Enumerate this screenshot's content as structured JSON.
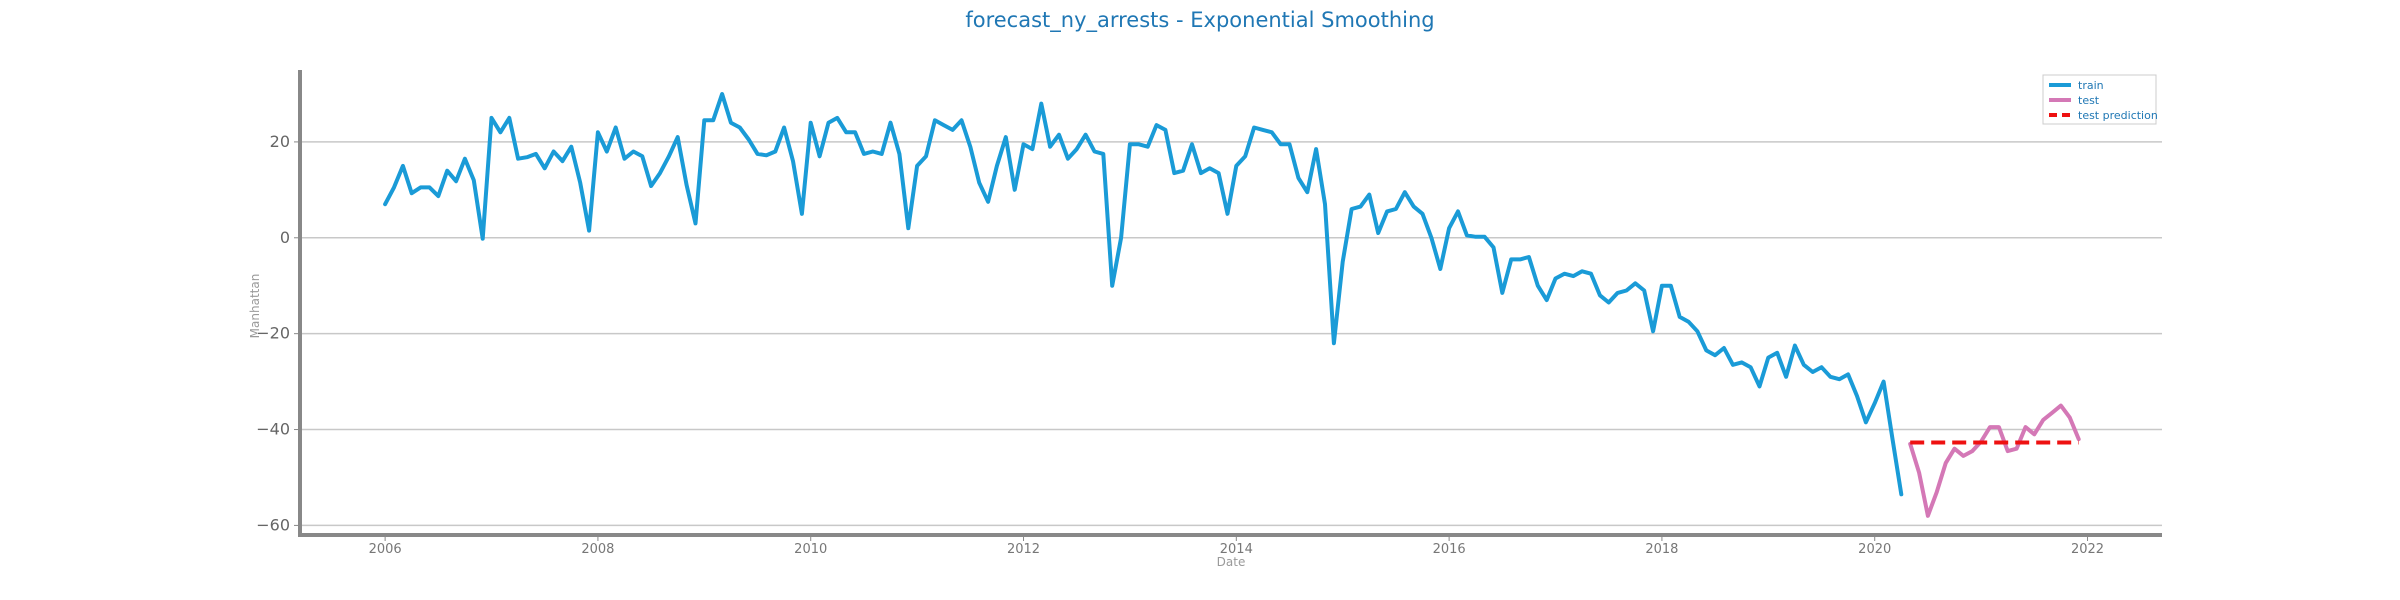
{
  "chart_data": {
    "type": "line",
    "title": "forecast_ny_arrests - Exponential Smoothing",
    "xlabel": "Date",
    "ylabel": "Manhattan",
    "xlim": [
      2005.2,
      2022.7
    ],
    "ylim": [
      -62,
      35
    ],
    "x_ticks": [
      2006,
      2008,
      2010,
      2012,
      2014,
      2016,
      2018,
      2020,
      2022
    ],
    "y_ticks": [
      -60,
      -40,
      -20,
      0,
      20
    ],
    "grid": "horizontal",
    "legend_position": "top-right",
    "colors": {
      "train": "#1a9bd7",
      "test": "#d478b6",
      "test_prediction": "#ee1111",
      "title": "#1f77b4"
    },
    "series": [
      {
        "name": "train",
        "style": "solid",
        "start": "2006-01",
        "frequency": "monthly",
        "values": [
          7,
          10.5,
          15,
          9.3,
          10.5,
          10.5,
          8.7,
          14,
          11.8,
          16.5,
          12,
          -0.2,
          25,
          22,
          25,
          16.5,
          16.8,
          17.5,
          14.5,
          18,
          16,
          19,
          11.5,
          1.5,
          22,
          18,
          23,
          16.5,
          18,
          17,
          10.8,
          13.5,
          17,
          21,
          11,
          3,
          24.5,
          24.5,
          30,
          24,
          23,
          20.5,
          17.5,
          17.2,
          18,
          23,
          16,
          5,
          24,
          17,
          24,
          25,
          22,
          22,
          17.5,
          18,
          17.5,
          24,
          17.5,
          2,
          15,
          17,
          24.5,
          23.5,
          22.5,
          24.5,
          19,
          11.5,
          7.5,
          15,
          21,
          10,
          19.5,
          18.5,
          28,
          19,
          21.5,
          16.5,
          18.5,
          21.5,
          18,
          17.5,
          -10,
          0,
          19.5,
          19.5,
          19,
          23.5,
          22.5,
          13.5,
          14,
          19.5,
          13.5,
          14.5,
          13.5,
          5,
          15,
          17,
          23,
          22.5,
          22,
          19.5,
          19.5,
          12.5,
          9.5,
          18.5,
          7,
          -22,
          -5,
          6,
          6.5,
          9,
          1,
          5.5,
          6,
          9.5,
          6.5,
          5,
          0,
          -6.5,
          2,
          5.5,
          0.5,
          0.2,
          0.2,
          -2,
          -11.5,
          -4.5,
          -4.5,
          -4,
          -10,
          -13,
          -8.5,
          -7.5,
          -8,
          -7,
          -7.5,
          -12,
          -13.5,
          -11.5,
          -11,
          -9.5,
          -11,
          -19.5,
          -10,
          -10,
          -16.5,
          -17.5,
          -19.5,
          -23.5,
          -24.5,
          -23,
          -26.5,
          -26,
          -27,
          -31,
          -25,
          -24,
          -29,
          -22.5,
          -26.5,
          -28,
          -27,
          -29,
          -29.5,
          -28.5,
          -33,
          -38.5,
          -34.5,
          -30,
          -42,
          -53.5
        ]
      },
      {
        "name": "test",
        "style": "solid",
        "start": "2020-05",
        "frequency": "monthly",
        "values": [
          -43,
          -49,
          -58,
          -53,
          -47,
          -44,
          -45.5,
          -44.5,
          -42.5,
          -39.5,
          -39.5,
          -44.5,
          -44,
          -39.5,
          -41,
          -38,
          -36.5,
          -35,
          -37.5,
          -42
        ]
      },
      {
        "name": "test prediction",
        "style": "dashed",
        "start": "2020-05",
        "frequency": "monthly",
        "values": [
          -42.7,
          -42.7,
          -42.7,
          -42.7,
          -42.7,
          -42.7,
          -42.7,
          -42.7,
          -42.7,
          -42.7,
          -42.7,
          -42.7,
          -42.7,
          -42.7,
          -42.7,
          -42.7,
          -42.7,
          -42.7,
          -42.7,
          -42.7
        ]
      }
    ]
  }
}
